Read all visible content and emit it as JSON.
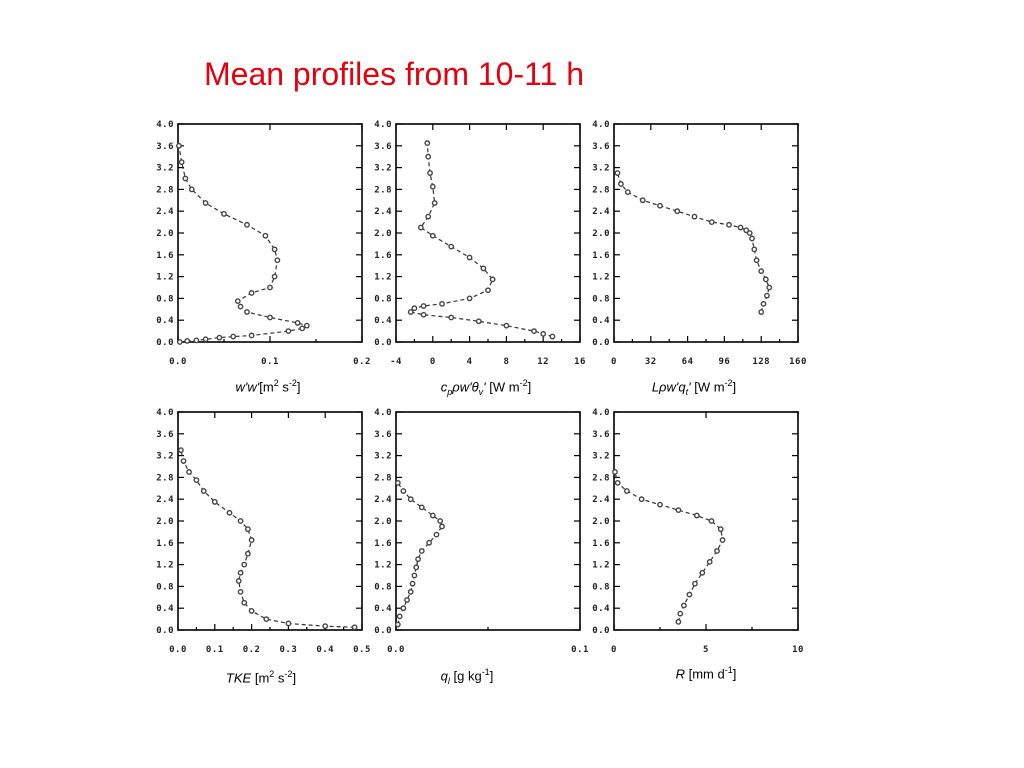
{
  "title": "Mean profiles from 10-11 h",
  "chart_data": [
    {
      "type": "line",
      "xlabel": {
        "var": "w'w'",
        "unit_pre": "[m",
        "unit_sup1": "2",
        "unit_mid": " s",
        "unit_sup2": "-2",
        "unit_post": "]"
      },
      "xlim": [
        0,
        0.2
      ],
      "ylim": [
        0,
        4.0
      ],
      "xticks": [
        "0.0",
        "0.1",
        "0.2"
      ],
      "xtick_values": [
        0,
        0.1,
        0.2
      ],
      "yticks": [
        "0.0",
        "0.4",
        "0.8",
        "1.2",
        "1.6",
        "2.0",
        "2.4",
        "2.8",
        "3.2",
        "3.6",
        "4.0"
      ],
      "series": [
        {
          "x": [
            0.002,
            0.01,
            0.02,
            0.03,
            0.045,
            0.06,
            0.08,
            0.12,
            0.135,
            0.14,
            0.13,
            0.1,
            0.075,
            0.068,
            0.065,
            0.08,
            0.1,
            0.105,
            0.108,
            0.105,
            0.095,
            0.075,
            0.05,
            0.03,
            0.015,
            0.008,
            0.004,
            0.001
          ],
          "y": [
            0.0,
            0.02,
            0.03,
            0.05,
            0.08,
            0.1,
            0.12,
            0.2,
            0.25,
            0.3,
            0.35,
            0.45,
            0.55,
            0.65,
            0.75,
            0.9,
            1.0,
            1.2,
            1.5,
            1.7,
            1.95,
            2.15,
            2.35,
            2.55,
            2.8,
            3.0,
            3.3,
            3.6
          ]
        }
      ]
    },
    {
      "type": "line",
      "xlabel": {
        "var": "c",
        "sub1": "p",
        "mid": "ρw'θ",
        "sub2": "v",
        "tail": "'",
        "unit": " [W m",
        "unit_sup": "-2",
        "unit_post": "]"
      },
      "xlim": [
        -4,
        16
      ],
      "ylim": [
        0,
        4.0
      ],
      "xticks": [
        "-4",
        "0",
        "4",
        "8",
        "12",
        "16"
      ],
      "xtick_values": [
        -4,
        0,
        4,
        8,
        12,
        16
      ],
      "yticks": [
        "0.0",
        "0.4",
        "0.8",
        "1.2",
        "1.6",
        "2.0",
        "2.4",
        "2.8",
        "3.2",
        "3.6",
        "4.0"
      ],
      "series": [
        {
          "x": [
            13,
            12,
            11,
            8,
            5,
            2,
            -1,
            -2.4,
            -2,
            -1,
            1,
            4,
            6,
            6.5,
            5.5,
            4,
            2,
            0,
            -1.3,
            -0.5,
            0.2,
            0,
            -0.3,
            -0.5,
            -0.6
          ],
          "y": [
            0.1,
            0.15,
            0.2,
            0.3,
            0.38,
            0.45,
            0.5,
            0.55,
            0.62,
            0.66,
            0.7,
            0.8,
            0.95,
            1.15,
            1.35,
            1.55,
            1.75,
            1.95,
            2.1,
            2.3,
            2.55,
            2.85,
            3.1,
            3.4,
            3.65
          ]
        }
      ]
    },
    {
      "type": "line",
      "xlabel": {
        "var": "Lρw'q",
        "sub": "t",
        "tail": "'",
        "unit": " [W m",
        "unit_sup": "-2",
        "unit_post": "]"
      },
      "xlim": [
        0,
        160
      ],
      "ylim": [
        0,
        4.0
      ],
      "xticks": [
        "0",
        "32",
        "64",
        "96",
        "128",
        "160"
      ],
      "xtick_values": [
        0,
        32,
        64,
        96,
        128,
        160
      ],
      "yticks": [
        "0.0",
        "0.4",
        "0.8",
        "1.2",
        "1.6",
        "2.0",
        "2.4",
        "2.8",
        "3.2",
        "3.6",
        "4.0"
      ],
      "series": [
        {
          "x": [
            128,
            130,
            133,
            135,
            132,
            128,
            124,
            122,
            120,
            118,
            115,
            110,
            100,
            85,
            70,
            55,
            40,
            25,
            12,
            6,
            3
          ],
          "y": [
            0.55,
            0.7,
            0.85,
            1.0,
            1.15,
            1.3,
            1.5,
            1.7,
            1.9,
            2.0,
            2.05,
            2.1,
            2.15,
            2.2,
            2.3,
            2.4,
            2.5,
            2.6,
            2.75,
            2.9,
            3.1
          ]
        }
      ]
    },
    {
      "type": "line",
      "xlabel": {
        "var": "TKE",
        "unit": " [m",
        "unit_sup1": "2",
        "unit_mid": " s",
        "unit_sup2": "-2",
        "unit_post": "]"
      },
      "xlim": [
        0,
        0.5
      ],
      "ylim": [
        0,
        4.0
      ],
      "xticks": [
        "0.0",
        "0.1",
        "0.2",
        "0.3",
        "0.4",
        "0.5"
      ],
      "xtick_values": [
        0,
        0.1,
        0.2,
        0.3,
        0.4,
        0.5
      ],
      "yticks": [
        "0.0",
        "0.4",
        "0.8",
        "1.2",
        "1.6",
        "2.0",
        "2.4",
        "2.8",
        "3.2",
        "3.6",
        "4.0"
      ],
      "series": [
        {
          "x": [
            0.48,
            0.4,
            0.3,
            0.24,
            0.2,
            0.18,
            0.17,
            0.165,
            0.17,
            0.18,
            0.19,
            0.2,
            0.19,
            0.17,
            0.14,
            0.1,
            0.07,
            0.05,
            0.03,
            0.015,
            0.008
          ],
          "y": [
            0.05,
            0.07,
            0.12,
            0.2,
            0.35,
            0.5,
            0.7,
            0.9,
            1.05,
            1.2,
            1.4,
            1.65,
            1.85,
            2.0,
            2.15,
            2.35,
            2.55,
            2.75,
            2.9,
            3.1,
            3.3
          ]
        }
      ]
    },
    {
      "type": "line",
      "xlabel": {
        "var": "q",
        "sub": "l",
        "unit": " [g kg",
        "unit_sup": "-1",
        "unit_post": "]"
      },
      "xlim": [
        0,
        0.1
      ],
      "ylim": [
        0,
        4.0
      ],
      "xticks": [
        "0.0",
        "0.1"
      ],
      "xtick_values": [
        0,
        0.1
      ],
      "yticks": [
        "0.0",
        "0.4",
        "0.8",
        "1.2",
        "1.6",
        "2.0",
        "2.4",
        "2.8",
        "3.2",
        "3.6",
        "4.0"
      ],
      "series": [
        {
          "x": [
            0.001,
            0.002,
            0.004,
            0.006,
            0.008,
            0.009,
            0.01,
            0.011,
            0.012,
            0.014,
            0.018,
            0.022,
            0.025,
            0.024,
            0.02,
            0.014,
            0.008,
            0.004,
            0.001
          ],
          "y": [
            0.1,
            0.25,
            0.4,
            0.55,
            0.7,
            0.85,
            1.0,
            1.15,
            1.3,
            1.45,
            1.6,
            1.75,
            1.9,
            2.0,
            2.1,
            2.25,
            2.4,
            2.55,
            2.7
          ]
        }
      ]
    },
    {
      "type": "line",
      "xlabel": {
        "var": "R",
        "unit": " [mm d",
        "unit_sup": "-1",
        "unit_post": "]"
      },
      "xlim": [
        0,
        10
      ],
      "ylim": [
        0,
        4.0
      ],
      "xticks": [
        "0",
        "5",
        "10"
      ],
      "xtick_values": [
        0,
        5,
        10
      ],
      "yticks": [
        "0.0",
        "0.4",
        "0.8",
        "1.2",
        "1.6",
        "2.0",
        "2.4",
        "2.8",
        "3.2",
        "3.6",
        "4.0"
      ],
      "series": [
        {
          "x": [
            3.5,
            3.6,
            3.8,
            4.1,
            4.4,
            4.8,
            5.2,
            5.6,
            5.9,
            5.8,
            5.3,
            4.5,
            3.5,
            2.5,
            1.5,
            0.7,
            0.2,
            0.05
          ],
          "y": [
            0.15,
            0.3,
            0.45,
            0.65,
            0.85,
            1.05,
            1.25,
            1.45,
            1.65,
            1.85,
            2.0,
            2.1,
            2.2,
            2.3,
            2.4,
            2.55,
            2.7,
            2.9
          ]
        }
      ]
    }
  ]
}
